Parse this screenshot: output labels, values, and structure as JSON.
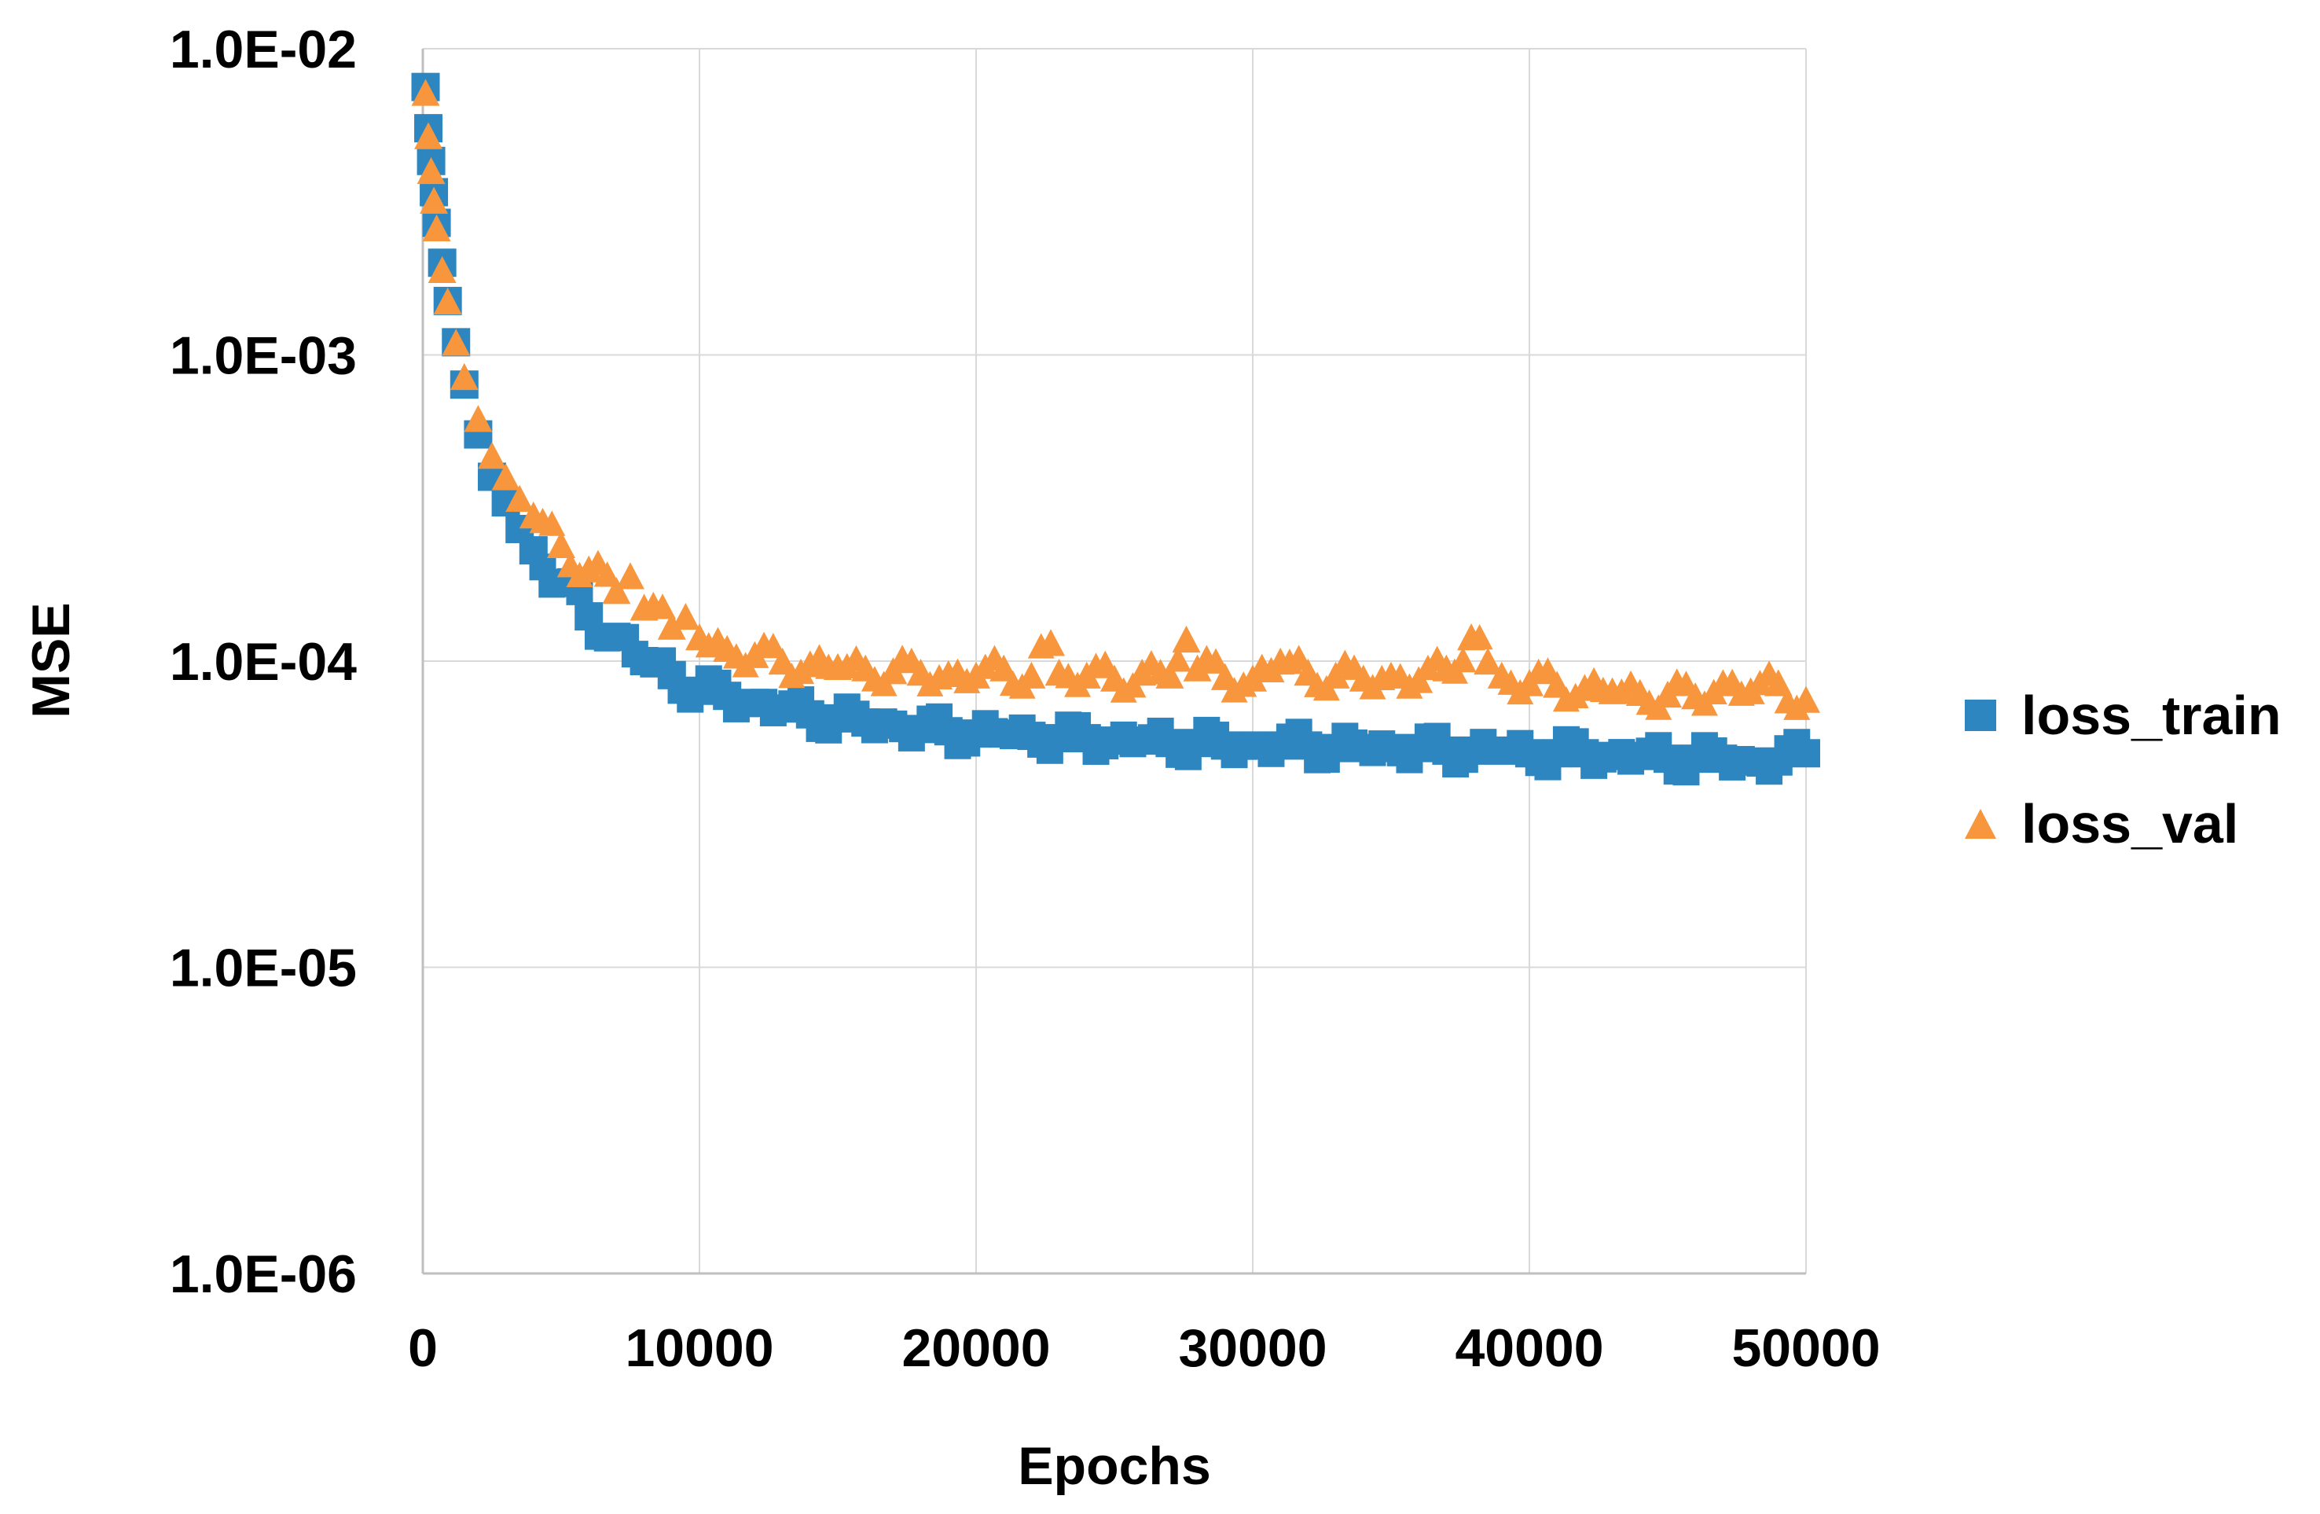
{
  "chart_data": {
    "type": "scatter",
    "xlabel": "Epochs",
    "ylabel": "MSE",
    "xlim": [
      0,
      50000
    ],
    "ylim": [
      1e-06,
      0.01
    ],
    "yscale": "log",
    "grid": true,
    "legend_position": "right",
    "x_ticks": [
      0,
      10000,
      20000,
      30000,
      40000,
      50000
    ],
    "x_tick_labels": [
      "0",
      "10000",
      "20000",
      "30000",
      "40000",
      "50000"
    ],
    "y_ticks": [
      0.01,
      0.001,
      0.0001,
      1e-05,
      1e-06
    ],
    "y_tick_labels": [
      "1.0E-02",
      "1.0E-03",
      "1.0E-04",
      "1.0E-05",
      "1.0E-06"
    ],
    "series": [
      {
        "name": "loss_train",
        "marker": "square",
        "color": "#2e86c1",
        "x": [
          100,
          200,
          300,
          400,
          500,
          700,
          900,
          1200,
          1500,
          2000,
          2500,
          3000,
          3500,
          4000,
          5000,
          6000,
          7000,
          8000,
          9000,
          10000,
          11000,
          12000,
          13000,
          14000,
          15000,
          16000,
          17000,
          18000,
          19000,
          20000,
          21000,
          22000,
          23000,
          24000,
          25000,
          26000,
          27000,
          28000,
          29000,
          30000,
          31000,
          32000,
          33000,
          34000,
          35000,
          36000,
          37000,
          38000,
          39000,
          40000,
          41000,
          42000,
          43000,
          44000,
          45000,
          46000,
          47000,
          48000,
          49000,
          50000
        ],
        "y": [
          0.0075,
          0.0055,
          0.0043,
          0.0034,
          0.0027,
          0.002,
          0.0015,
          0.0011,
          0.0008,
          0.00055,
          0.0004,
          0.00033,
          0.00027,
          0.00023,
          0.00018,
          0.00014,
          0.00012,
          0.0001,
          9e-05,
          8e-05,
          7.7e-05,
          7.3e-05,
          7e-05,
          6.7e-05,
          6.5e-05,
          6.3e-05,
          6.2e-05,
          6e-05,
          5.9e-05,
          5.8e-05,
          5.8e-05,
          5.7e-05,
          5.6e-05,
          5.6e-05,
          5.5e-05,
          5.5e-05,
          5.4e-05,
          5.4e-05,
          5.3e-05,
          5.3e-05,
          5.3e-05,
          5.3e-05,
          5.2e-05,
          5.2e-05,
          5.2e-05,
          5.2e-05,
          5.1e-05,
          5.1e-05,
          5.1e-05,
          5e-05,
          5e-05,
          5e-05,
          4.9e-05,
          4.9e-05,
          4.8e-05,
          4.8e-05,
          4.8e-05,
          4.7e-05,
          4.7e-05,
          5e-05
        ]
      },
      {
        "name": "loss_val",
        "marker": "triangle",
        "color": "#f7963c",
        "x": [
          100,
          200,
          300,
          400,
          500,
          700,
          900,
          1200,
          1500,
          2000,
          2500,
          3000,
          3500,
          4000,
          5000,
          6000,
          7000,
          7500,
          8000,
          9000,
          9500,
          10000,
          11000,
          12000,
          13000,
          14000,
          15000,
          16000,
          17000,
          18000,
          19000,
          20000,
          21000,
          22000,
          22700,
          23000,
          24000,
          25000,
          26000,
          27000,
          27600,
          28000,
          29000,
          30000,
          31000,
          32000,
          33000,
          34000,
          35000,
          36000,
          37000,
          37900,
          38500,
          39000,
          40000,
          41000,
          42000,
          43000,
          44000,
          45000,
          46000,
          47000,
          48000,
          49000,
          50000
        ],
        "y": [
          0.0072,
          0.0052,
          0.004,
          0.0032,
          0.0026,
          0.0019,
          0.0015,
          0.0011,
          0.00085,
          0.00062,
          0.00047,
          0.0004,
          0.00034,
          0.0003,
          0.00024,
          0.0002,
          0.00017,
          0.00019,
          0.00015,
          0.00013,
          0.00014,
          0.00012,
          0.00011,
          0.000105,
          0.0001,
          9.8e-05,
          9.6e-05,
          9.5e-05,
          9.3e-05,
          9.2e-05,
          9.1e-05,
          9e-05,
          9.5e-05,
          9e-05,
          0.000115,
          9.2e-05,
          9e-05,
          8.8e-05,
          9.2e-05,
          9e-05,
          0.000118,
          9.5e-05,
          8.9e-05,
          8.8e-05,
          0.0001,
          9.2e-05,
          9e-05,
          8.8e-05,
          9e-05,
          8.7e-05,
          9.5e-05,
          0.00012,
          0.0001,
          9e-05,
          8.5e-05,
          8.4e-05,
          8.2e-05,
          8e-05,
          7.9e-05,
          7.8e-05,
          7.7e-05,
          8.5e-05,
          8e-05,
          8.5e-05,
          7.5e-05
        ]
      }
    ]
  }
}
